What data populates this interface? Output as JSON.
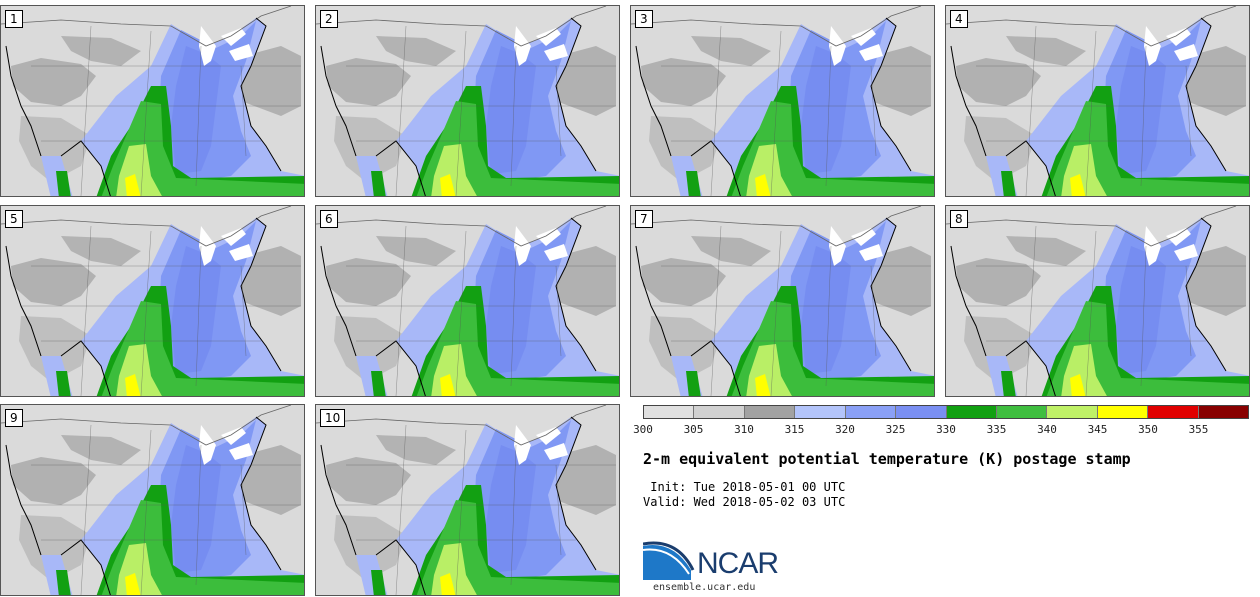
{
  "colors": {
    "ocean": "#dcdcdc",
    "land_light": "#dadada",
    "land_mid": "#a9a9a9",
    "blue_light": "#a8b8f8",
    "blue_mid": "#8098f4",
    "blue_dark": "#6f86ef",
    "green_dark": "#12a012",
    "green_mid": "#3cbd3c",
    "green_light": "#b9ef66",
    "yellow": "#ffff00",
    "lake": "#ffffff",
    "coast": "#000000"
  },
  "members": [
    "1",
    "2",
    "3",
    "4",
    "5",
    "6",
    "7",
    "8",
    "9",
    "10"
  ],
  "legend": {
    "colors": [
      "#e0e0e0",
      "#d1d1d1",
      "#a2a2a2",
      "#b3c4fa",
      "#8aa0f6",
      "#7a8ff2",
      "#11a011",
      "#3fbe3f",
      "#bff167",
      "#ffff00",
      "#e00000",
      "#880000"
    ],
    "ticks": [
      "300",
      "305",
      "310",
      "315",
      "320",
      "325",
      "330",
      "335",
      "340",
      "345",
      "350",
      "355"
    ]
  },
  "title": "2-m equivalent potential temperature (K) postage stamp",
  "init": " Init: Tue 2018-05-01 00 UTC",
  "valid": "Valid: Wed 2018-05-02 03 UTC",
  "logo": {
    "text": "NCAR",
    "url": "ensemble.ucar.edu"
  }
}
